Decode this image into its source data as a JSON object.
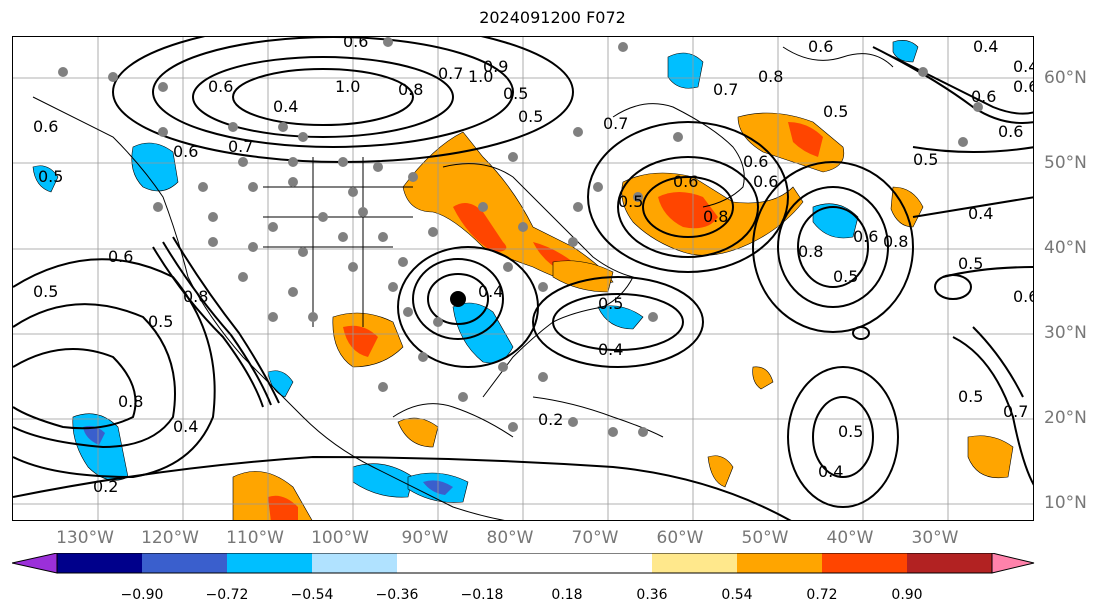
{
  "title": "2024091200 F072",
  "lon_labels": [
    "130°W",
    "120°W",
    "110°W",
    "100°W",
    "90°W",
    "80°W",
    "70°W",
    "60°W",
    "50°W",
    "40°W",
    "30°W"
  ],
  "lat_labels": [
    "60°N",
    "50°N",
    "40°N",
    "30°N",
    "20°N",
    "10°N"
  ],
  "colorbar": {
    "ticks": [
      "−0.90",
      "−0.72",
      "−0.54",
      "−0.36",
      "−0.18",
      "0.18",
      "0.36",
      "0.54",
      "0.72",
      "0.90"
    ],
    "colors": [
      "#9b30d9",
      "#00008b",
      "#3a5fcd",
      "#00bfff",
      "#b0e2ff",
      "#ffffff",
      "#ffe88c",
      "#ffa500",
      "#ff4500",
      "#b22222",
      "#ff82ab"
    ]
  },
  "contour_labels": [
    "0.6",
    "0.5",
    "0.6",
    "0.5",
    "0.8",
    "0.4",
    "0.2",
    "1.0",
    "0.7",
    "0.8",
    "0.5",
    "0.9",
    "0.4",
    "0.7",
    "0.6",
    "0.5",
    "0.4",
    "0.6",
    "0.5",
    "0.4",
    "0.5",
    "0.6",
    "0.6",
    "0.5",
    "0.4",
    "0.8",
    "0.5",
    "0.6",
    "0.6",
    "0.8",
    "0.5",
    "0.4",
    "0.5",
    "0.7",
    "0.6",
    "0.2",
    "0.7",
    "0.5",
    "0.4",
    "0.8",
    "0.6",
    "0.8",
    "0.4",
    "0.6",
    "0.6",
    "0.5",
    "0.6",
    "0.7",
    "0.8",
    "1.0",
    "0.6",
    "0.5"
  ]
}
